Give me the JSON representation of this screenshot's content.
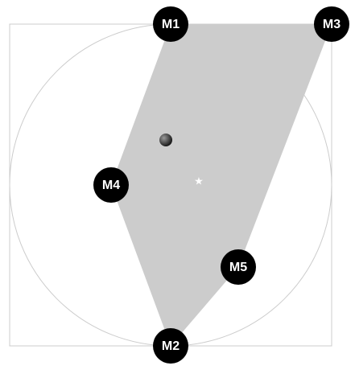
{
  "colors": {
    "background": "#ffffff",
    "frame": "#cccccc",
    "circle": "#cccccc",
    "polygon_fill": "#cccccc",
    "marker_fill": "#000000",
    "marker_text": "#ffffff",
    "center_star": "#ffffff",
    "ball_highlight": "#9a9a9a",
    "ball_shadow": "#111111"
  },
  "markers": [
    {
      "id": "m1",
      "label": "M1"
    },
    {
      "id": "m2",
      "label": "M2"
    },
    {
      "id": "m3",
      "label": "M3"
    },
    {
      "id": "m4",
      "label": "M4"
    },
    {
      "id": "m5",
      "label": "M5"
    }
  ],
  "polygon_vertex_order": [
    "m1",
    "m3",
    "m5",
    "m2",
    "m4"
  ],
  "center_symbol": "★",
  "objects": {
    "ball": "ball-icon",
    "center": "star-icon"
  }
}
